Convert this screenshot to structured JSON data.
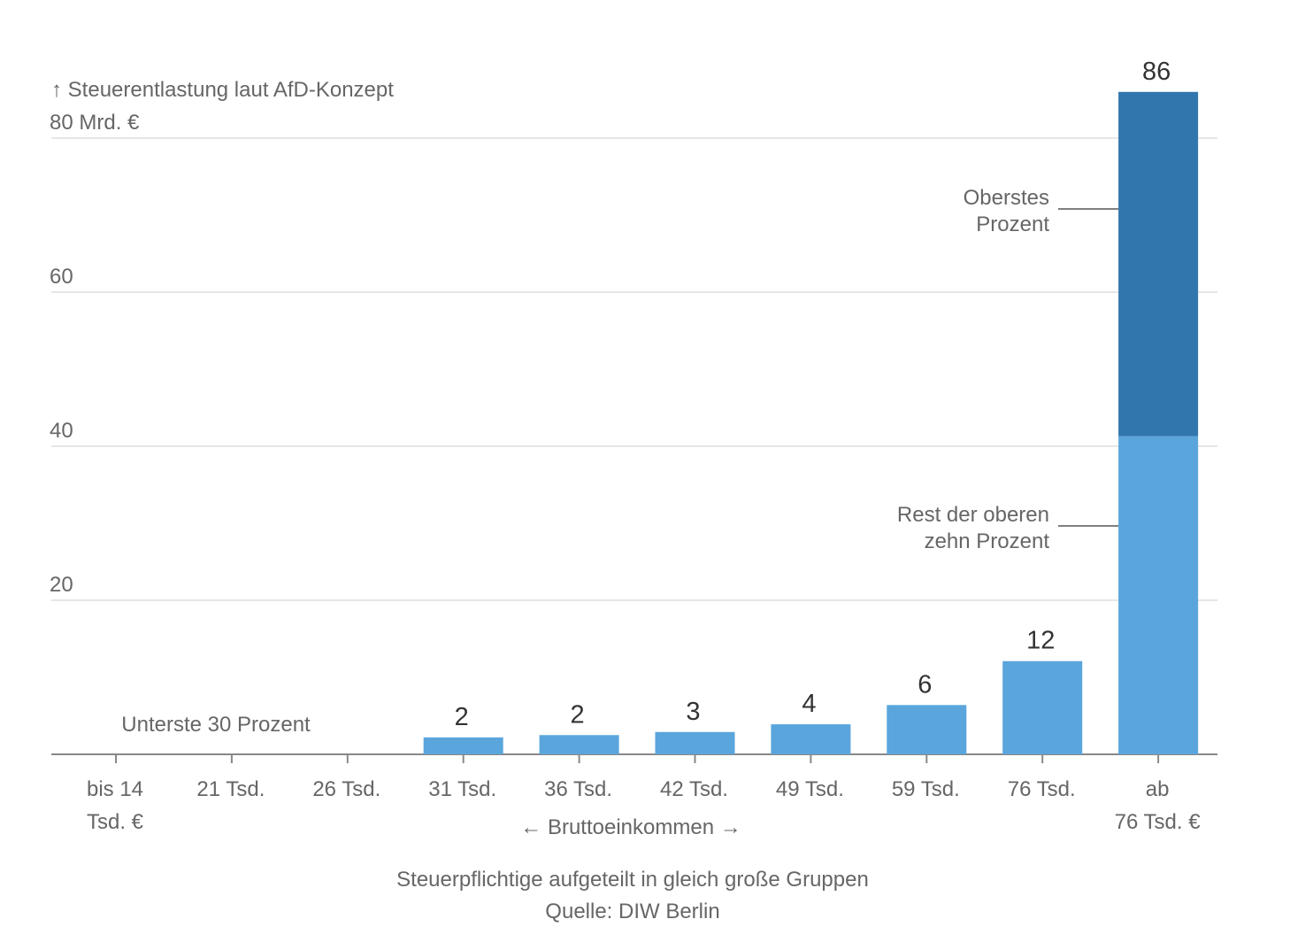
{
  "chart_data": {
    "type": "bar",
    "stacked": true,
    "ylabel": "↑ Steuerentlastung laut AfD-Konzept",
    "ylim": [
      0,
      80
    ],
    "yticks": [
      {
        "value": 80,
        "label": "80 Mrd. €"
      },
      {
        "value": 60,
        "label": "60"
      },
      {
        "value": 40,
        "label": "40"
      },
      {
        "value": 20,
        "label": "20"
      }
    ],
    "grid": true,
    "categories": [
      [
        "bis 14",
        "Tsd. €"
      ],
      [
        "21 Tsd."
      ],
      [
        "26 Tsd."
      ],
      [
        "31 Tsd."
      ],
      [
        "36 Tsd."
      ],
      [
        "42 Tsd."
      ],
      [
        "49 Tsd."
      ],
      [
        "59 Tsd."
      ],
      [
        "76 Tsd."
      ],
      [
        "ab",
        "76 Tsd. €"
      ]
    ],
    "series": [
      {
        "name": "Rest der oberen zehn Prozent",
        "color": "#5aa5dc",
        "values": [
          0,
          0,
          0,
          2.2,
          2.5,
          2.9,
          3.9,
          6.4,
          12.1,
          41.3
        ]
      },
      {
        "name": "Oberstes Prozent",
        "color": "#3176ad",
        "values": [
          0,
          0,
          0,
          0,
          0,
          0,
          0,
          0,
          0,
          44.7
        ]
      }
    ],
    "data_labels": [
      "",
      "",
      "",
      "2",
      "2",
      "3",
      "4",
      "6",
      "12",
      "86"
    ],
    "annotations": {
      "bottom_group": "Unterste 30 Prozent",
      "top_percent": [
        "Oberstes",
        "Prozent"
      ],
      "rest_top_ten": [
        "Rest der oberen",
        "zehn Prozent"
      ]
    },
    "xlabel": "← Bruttoeinkommen →",
    "note": "Steuerpflichtige aufgeteilt in gleich große Gruppen",
    "source": "Quelle: DIW Berlin"
  }
}
